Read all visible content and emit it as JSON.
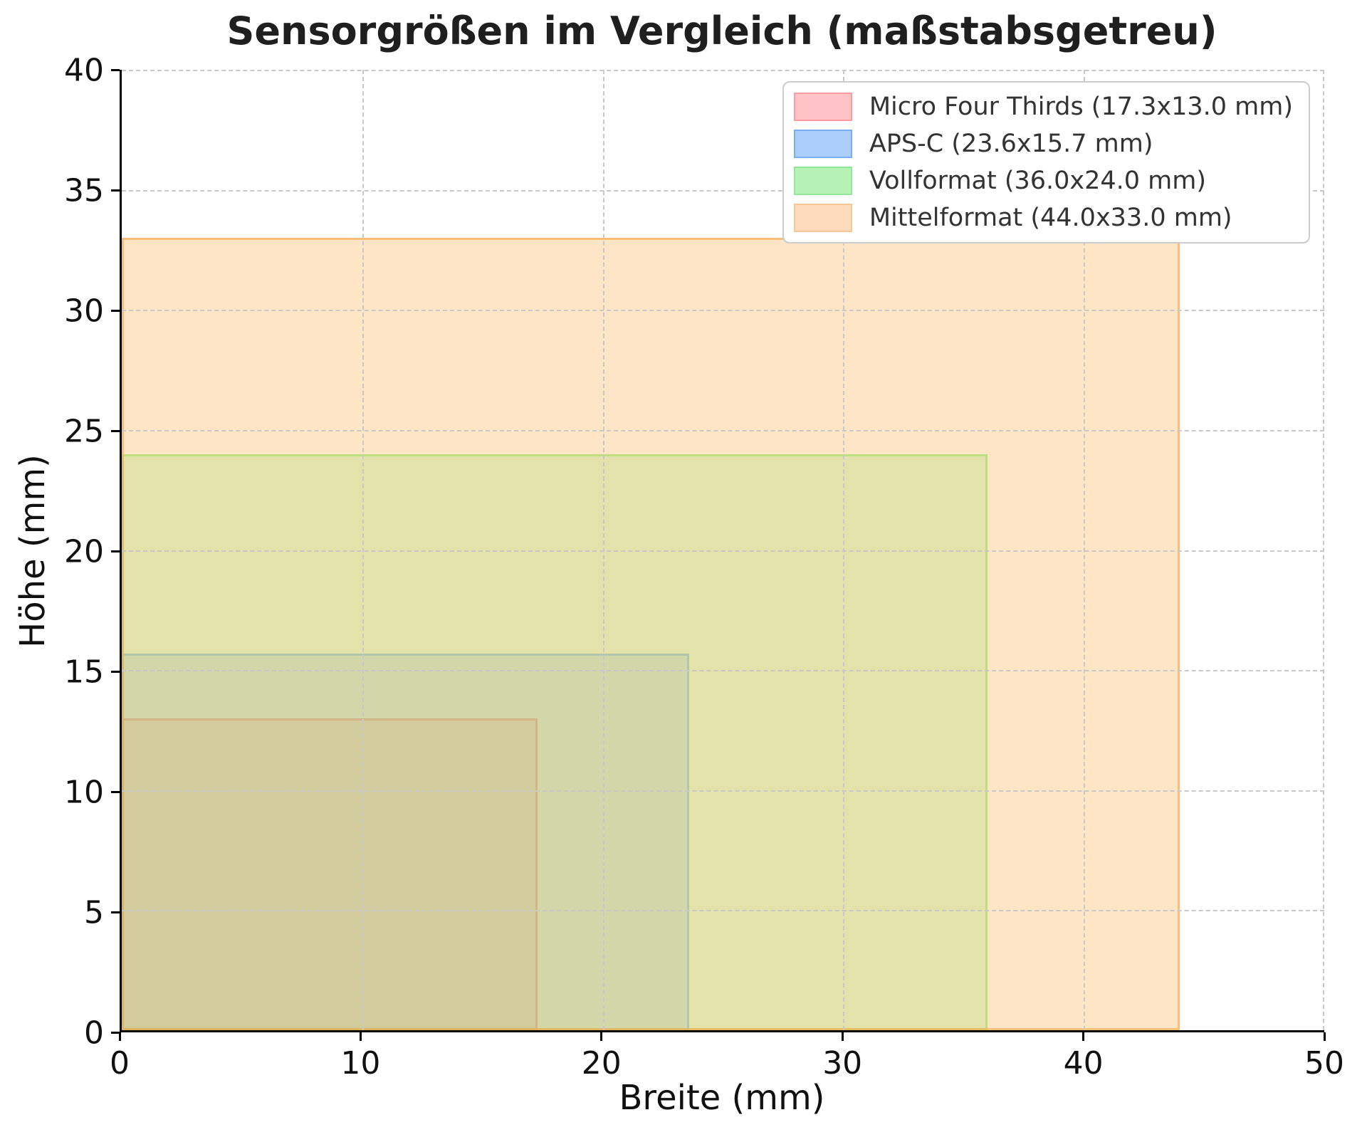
{
  "figure": {
    "background": "#ffffff",
    "spine_color": "#000000",
    "grid_color": "#c8c8c8",
    "text_color": "#111111",
    "legend_border_color": "#cccccc"
  },
  "chart_data": {
    "type": "area",
    "title": "Sensorgrößen im Vergleich (maßstabsgetreu)",
    "xlabel": "Breite (mm)",
    "ylabel": "Höhe (mm)",
    "xlim": [
      0,
      50
    ],
    "ylim": [
      0,
      40
    ],
    "xticks": [
      0,
      10,
      20,
      30,
      40,
      50
    ],
    "yticks": [
      0,
      5,
      10,
      15,
      20,
      25,
      30,
      35,
      40
    ],
    "grid": true,
    "grid_style": "dashed",
    "legend_position": "upper right",
    "series": [
      {
        "name": "Micro Four Thirds",
        "label": "Micro Four Thirds (17.3x13.0 mm)",
        "x": 0,
        "y": 0,
        "width_mm": 17.3,
        "height_mm": 13.0,
        "fill": "rgba(255,70,80,0.16)",
        "edge": "rgba(255,70,80,0.38)",
        "legend_fill": "#ffc3c7",
        "legend_edge": "#ff9aa1"
      },
      {
        "name": "APS-C",
        "label": "APS-C (23.6x15.7 mm)",
        "x": 0,
        "y": 0,
        "width_mm": 23.6,
        "height_mm": 15.7,
        "fill": "rgba(70,145,250,0.20)",
        "edge": "rgba(70,145,250,0.42)",
        "legend_fill": "#aacdfa",
        "legend_edge": "#79aef2"
      },
      {
        "name": "Vollformat",
        "label": "Vollformat (36.0x24.0 mm)",
        "x": 0,
        "y": 0,
        "width_mm": 36.0,
        "height_mm": 24.0,
        "fill": "rgba(100,240,90,0.25)",
        "edge": "rgba(100,240,90,0.50)",
        "legend_fill": "#b7f3b6",
        "legend_edge": "#90e898"
      },
      {
        "name": "Mittelformat",
        "label": "Mittelformat (44.0x33.0 mm)",
        "x": 0,
        "y": 0,
        "width_mm": 44.0,
        "height_mm": 33.0,
        "fill": "rgba(250,180,90,0.35)",
        "edge": "rgba(248,170,80,0.65)",
        "legend_fill": "#fcdcbc",
        "legend_edge": "#f8c694"
      }
    ]
  }
}
